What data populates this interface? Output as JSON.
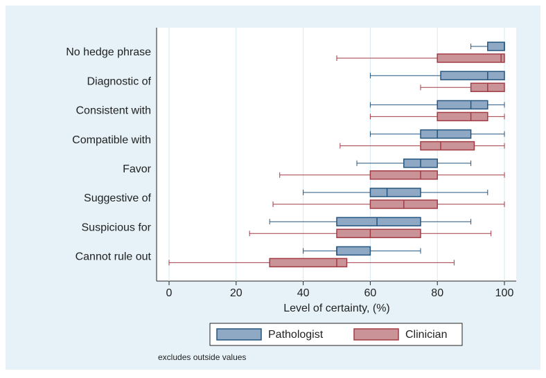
{
  "chart_data": {
    "type": "boxplot",
    "categories": [
      "No hedge phrase",
      "Diagnostic of",
      "Consistent with",
      "Compatible with",
      "Favor",
      "Suggestive of",
      "Suspicious for",
      "Cannot rule out"
    ],
    "series": [
      {
        "name": "Pathologist",
        "color": "#8fa9c4",
        "edge": "#24557f",
        "min": [
          90,
          60,
          60,
          60,
          56,
          40,
          30,
          40
        ],
        "q1": [
          95,
          81,
          80,
          75,
          70,
          60,
          50,
          50
        ],
        "median": [
          100,
          95,
          90,
          80,
          75,
          65,
          62,
          50
        ],
        "q3": [
          100,
          100,
          95,
          90,
          80,
          75,
          75,
          60
        ],
        "max": [
          100,
          100,
          100,
          100,
          90,
          95,
          90,
          75
        ]
      },
      {
        "name": "Clinician",
        "color": "#c99398",
        "edge": "#a23a44",
        "min": [
          50,
          75,
          60,
          51,
          33,
          31,
          24,
          0
        ],
        "q1": [
          80,
          90,
          80,
          75,
          60,
          60,
          50,
          30
        ],
        "median": [
          99,
          95,
          90,
          81,
          75,
          70,
          60,
          50
        ],
        "q3": [
          100,
          100,
          95,
          91,
          80,
          80,
          75,
          53
        ],
        "max": [
          100,
          100,
          100,
          100,
          100,
          100,
          96,
          85
        ]
      }
    ],
    "xlabel": "Level of certainty, (%)",
    "xlim": [
      0,
      100
    ],
    "xticks": [
      0,
      20,
      40,
      60,
      80,
      100
    ],
    "grid": true,
    "note": "excludes outside values"
  }
}
